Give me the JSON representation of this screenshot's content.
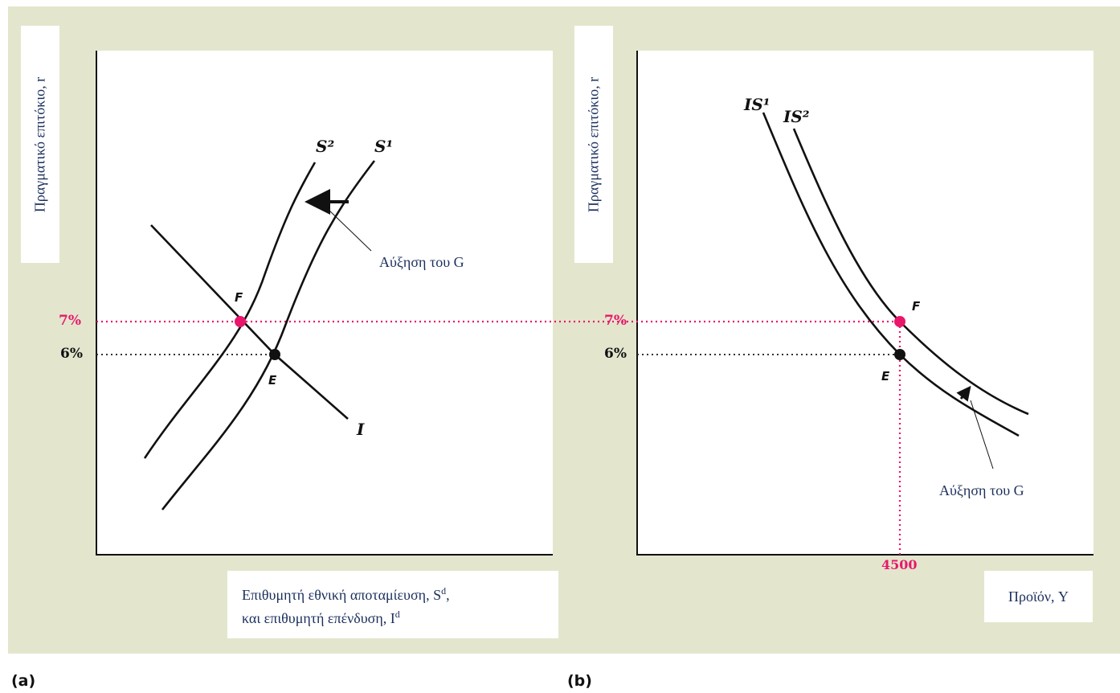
{
  "panel_a": {
    "tag": "(a)",
    "y_axis_label": "Πραγματικό επιτόκιο, r",
    "x_axis_label_line1_main": "Επιθυμητή εθνική αποταμίευση, S",
    "x_axis_label_line1_sup": "d",
    "x_axis_label_line1_end": ",",
    "x_axis_label_line2_main": "και επιθυμητή επένδυση, I",
    "x_axis_label_line2_sup": "d",
    "curve_s2": "S²",
    "curve_s1": "S¹",
    "curve_i": "I",
    "point_f": "F",
    "point_e": "E",
    "shift_annotation": "Αύξηση του G"
  },
  "panel_b": {
    "tag": "(b)",
    "y_axis_label": "Πραγματικό επιτόκιο, r",
    "x_axis_label": "Προϊόν, Y",
    "curve_is1": "IS¹",
    "curve_is2": "IS²",
    "point_f": "F",
    "point_e": "E",
    "shift_annotation": "Αύξηση του G",
    "output_tick": "4500"
  },
  "rates": {
    "high": "7%",
    "low": "6%"
  },
  "colors": {
    "accent": "#e8176b",
    "curve": "#111111",
    "background": "#e3e6cd"
  }
}
